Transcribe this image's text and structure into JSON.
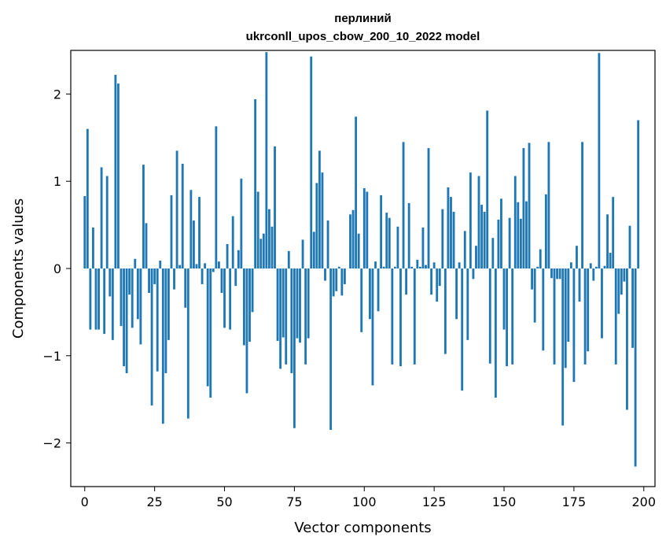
{
  "chart_data": {
    "type": "bar",
    "title": "перлиний",
    "subtitle": "ukrconll_upos_cbow_200_10_2022 model",
    "xlabel": "Vector components",
    "ylabel": "Components values",
    "xlim": [
      -5,
      204
    ],
    "ylim": [
      -2.5,
      2.5
    ],
    "xticks": [
      0,
      25,
      50,
      75,
      100,
      125,
      150,
      175,
      200
    ],
    "yticks": [
      -2,
      -1,
      0,
      1,
      2
    ],
    "ytick_labels": [
      "−2",
      "−1",
      "0",
      "1",
      "2"
    ],
    "grid": false,
    "color": "#1f77b4",
    "values": [
      0.83,
      1.6,
      -0.7,
      0.47,
      -0.7,
      -0.7,
      1.16,
      -0.75,
      1.06,
      -0.32,
      -0.82,
      2.22,
      2.12,
      -0.66,
      -1.12,
      -1.2,
      -0.3,
      -0.68,
      0.11,
      -0.58,
      -0.87,
      1.19,
      0.52,
      -0.28,
      -1.57,
      -0.18,
      -1.18,
      0.09,
      -1.78,
      -1.2,
      -0.82,
      0.84,
      -0.24,
      1.35,
      0.04,
      1.2,
      -0.45,
      -1.72,
      0.9,
      0.55,
      0.05,
      0.82,
      -0.18,
      0.06,
      -1.35,
      -1.48,
      -0.04,
      1.63,
      0.08,
      -0.28,
      -0.68,
      0.28,
      -0.7,
      0.6,
      -0.2,
      0.21,
      1.03,
      -0.88,
      -1.43,
      -0.84,
      -0.5,
      1.94,
      0.88,
      0.34,
      0.4,
      2.48,
      0.68,
      0.48,
      1.4,
      -0.83,
      -1.15,
      -0.79,
      -1.1,
      0.2,
      -1.2,
      -1.83,
      -0.8,
      -0.85,
      0.33,
      -1.1,
      -0.8,
      2.43,
      0.42,
      0.98,
      1.35,
      1.1,
      -0.14,
      0.55,
      -1.85,
      -0.32,
      -0.26,
      0.02,
      -0.31,
      -0.18,
      0.0,
      0.62,
      0.67,
      1.74,
      0.4,
      -0.73,
      0.92,
      0.88,
      -0.58,
      -1.34,
      0.08,
      -0.49,
      0.84,
      0.02,
      0.64,
      0.58,
      -1.1,
      0.02,
      0.48,
      -1.12,
      1.45,
      -0.3,
      0.75,
      0.02,
      -1.1,
      0.1,
      0.02,
      0.47,
      0.04,
      1.38,
      -0.3,
      0.07,
      -0.38,
      -0.2,
      0.68,
      -0.98,
      0.93,
      0.82,
      0.65,
      -0.58,
      0.07,
      -1.4,
      0.43,
      -0.82,
      1.1,
      -0.12,
      0.26,
      1.06,
      0.73,
      0.65,
      1.81,
      -1.09,
      0.35,
      -1.48,
      0.56,
      0.8,
      -0.7,
      -1.12,
      0.58,
      -1.1,
      1.06,
      0.76,
      0.57,
      1.38,
      0.77,
      1.44,
      -0.24,
      -0.62,
      0.02,
      0.22,
      -0.94,
      0.85,
      1.45,
      -0.11,
      -1.1,
      -0.12,
      -0.12,
      -1.8,
      -1.14,
      -0.84,
      0.07,
      -1.3,
      0.26,
      -0.38,
      1.45,
      -1.1,
      -0.95,
      0.06,
      -0.14,
      0.02,
      2.47,
      -0.8,
      0.03,
      0.62,
      0.18,
      0.82,
      -1.1,
      -0.52,
      -0.3,
      -0.15,
      -1.62,
      0.49,
      -0.91,
      -2.27,
      1.7
    ]
  }
}
